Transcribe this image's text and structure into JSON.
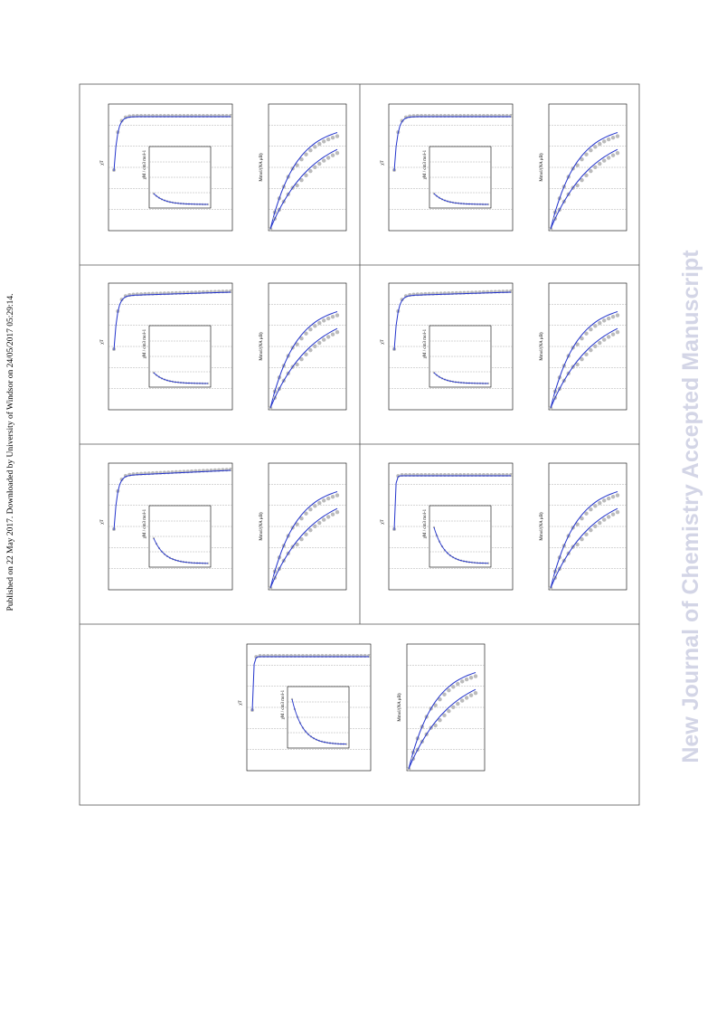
{
  "sidebar": "Published on 22 May 2017. Downloaded by University of Windsor on 24/05/2017 05:29:14.",
  "watermark": "New Journal of Chemistry Accepted Manuscript",
  "figure": {
    "panels": [
      {
        "chi_label": "χT",
        "inset_label": "χM / cm3 mol-1",
        "m_label": "Mmol/(NA μB)"
      },
      {
        "chi_label": "χT",
        "inset_label": "χM / cm3 mol-1",
        "m_label": "Mmol/(NA μB)"
      },
      {
        "chi_label": "χT",
        "inset_label": "χM / cm3 mol-1",
        "m_label": "Mmol/(NA μB)"
      },
      {
        "chi_label": "χT",
        "inset_label": "χM / cm3 mol-1",
        "m_label": "Mmol/(NA μB)"
      },
      {
        "chi_label": "χT",
        "inset_label": "χM / cm3 mol-1",
        "m_label": "Mmol/(NA μB)"
      },
      {
        "chi_label": "χT",
        "inset_label": "χM / cm3 mol-1",
        "m_label": "Mmol/(NA μB)"
      },
      {
        "chi_label": "χT",
        "inset_label": "χM / cm3 mol-1",
        "m_label": "Mmol/(NA μB)"
      }
    ]
  }
}
